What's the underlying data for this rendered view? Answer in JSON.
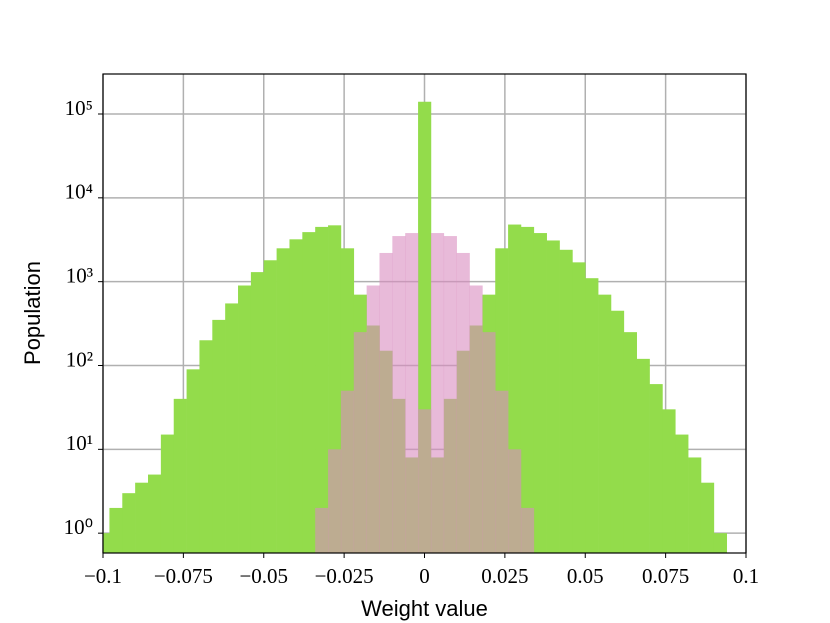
{
  "chart_data": {
    "type": "histogram",
    "xlabel": "Weight value",
    "ylabel": "Population",
    "xlim": [
      -0.1,
      0.1
    ],
    "xticks": [
      {
        "value": -0.1,
        "label": "−0.1"
      },
      {
        "value": -0.075,
        "label": "−0.075"
      },
      {
        "value": -0.05,
        "label": "−0.05"
      },
      {
        "value": -0.025,
        "label": "−0.025"
      },
      0,
      0.025,
      0.05,
      0.075,
      0.1
    ],
    "ylim": [
      0.58,
      300000
    ],
    "log_y": true,
    "yticks": [
      {
        "value": 1,
        "label": "10⁰"
      },
      {
        "value": 10,
        "label": "10¹"
      },
      {
        "value": 100,
        "label": "10²"
      },
      {
        "value": 1000,
        "label": "10³"
      },
      {
        "value": 10000,
        "label": "10⁴"
      },
      {
        "value": 100000,
        "label": "10⁵"
      }
    ],
    "grid": true,
    "series": [
      {
        "color": "#93dc4b",
        "opacity": 1,
        "bins": [
          -0.102,
          -0.098,
          -0.094,
          -0.09,
          -0.086,
          -0.082,
          -0.078,
          -0.074,
          -0.07,
          -0.066,
          -0.062,
          -0.058,
          -0.054,
          -0.05,
          -0.046,
          -0.042,
          -0.038,
          -0.034,
          -0.03,
          -0.026,
          -0.022,
          -0.018,
          -0.014,
          -0.01,
          -0.006,
          -0.002,
          0.002,
          0.006,
          0.01,
          0.014,
          0.018,
          0.022,
          0.026,
          0.03,
          0.034,
          0.038,
          0.042,
          0.046,
          0.05,
          0.054,
          0.058,
          0.062,
          0.066,
          0.07,
          0.074,
          0.078,
          0.082,
          0.086,
          0.09,
          0.094,
          0.098,
          0.102
        ],
        "values": [
          1,
          2,
          3,
          4,
          5,
          15,
          40,
          90,
          200,
          350,
          550,
          900,
          1300,
          1800,
          2500,
          3200,
          3900,
          4500,
          4700,
          2500,
          700,
          300,
          150,
          40,
          8,
          140000,
          8,
          40,
          150,
          300,
          700,
          2500,
          4800,
          4500,
          3800,
          3100,
          2400,
          1700,
          1100,
          700,
          450,
          250,
          120,
          60,
          30,
          15,
          8,
          4,
          1,
          0,
          0
        ]
      },
      {
        "color": "#d98cc0",
        "opacity": 0.6,
        "bins": [
          -0.034,
          -0.03,
          -0.026,
          -0.022,
          -0.018,
          -0.014,
          -0.01,
          -0.006,
          -0.002,
          0.002,
          0.006,
          0.01,
          0.014,
          0.018,
          0.022,
          0.026,
          0.03,
          0.034
        ],
        "values": [
          2,
          10,
          50,
          250,
          900,
          2200,
          3500,
          3800,
          30,
          3800,
          3500,
          2200,
          900,
          250,
          50,
          10,
          2
        ]
      }
    ]
  }
}
